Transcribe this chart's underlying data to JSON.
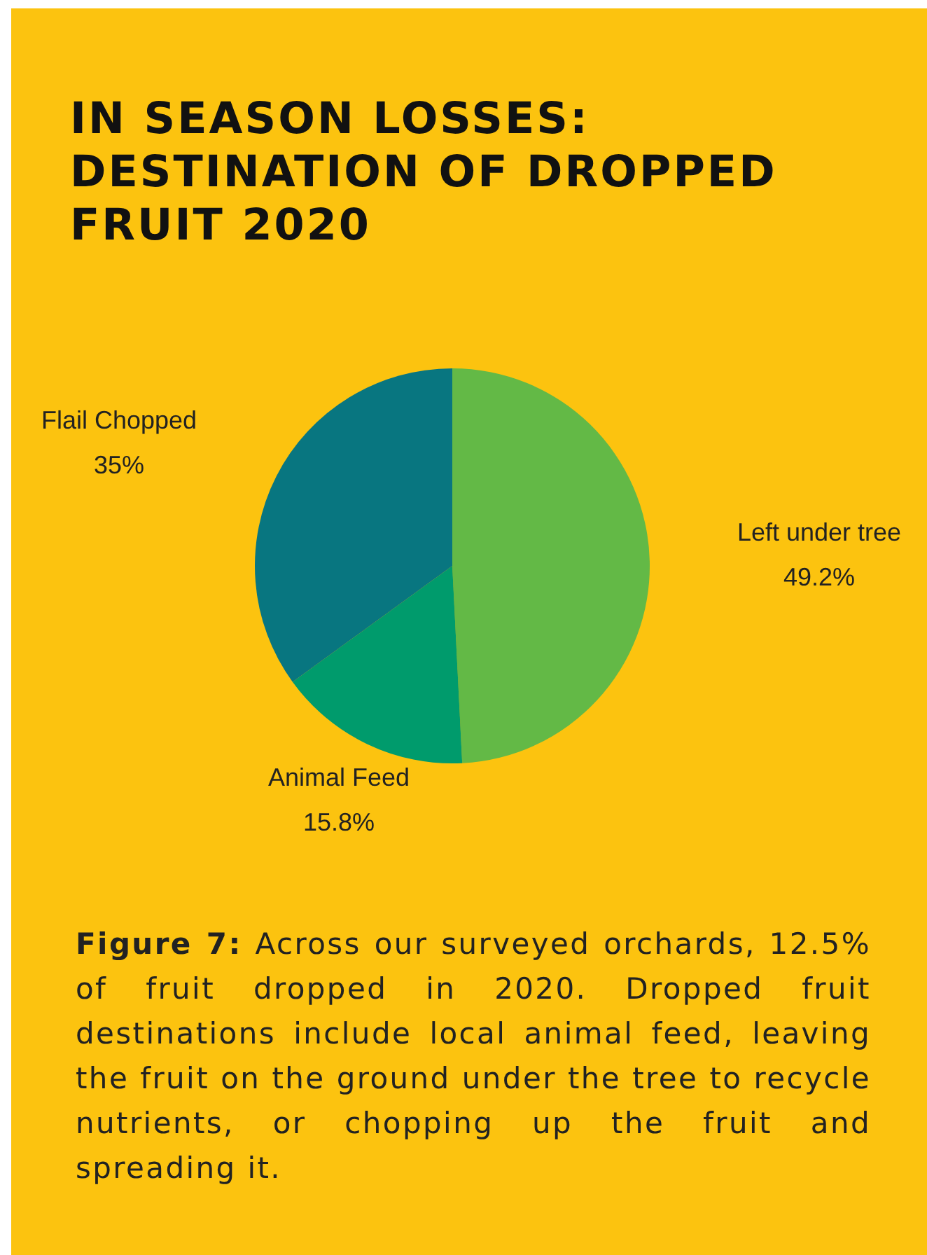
{
  "chart_data": {
    "type": "pie",
    "title": "IN SEASON LOSSES: DESTINATION OF DROPPED FRUIT 2020",
    "categories": [
      "Left under tree",
      "Animal Feed",
      "Flail Chopped"
    ],
    "values": [
      49.2,
      15.8,
      35
    ],
    "colors": [
      "#63b946",
      "#009b6c",
      "#087680"
    ],
    "value_labels": [
      "49.2%",
      "15.8%",
      "35%"
    ],
    "annotations": [
      "Figure 7: Across our surveyed orchards, 12.5% of fruit dropped in 2020. Dropped fruit destinations include local animal feed, leaving the fruit on the ground under the tree to recycle nutrients, or chopping up the fruit and spreading it."
    ]
  }
}
